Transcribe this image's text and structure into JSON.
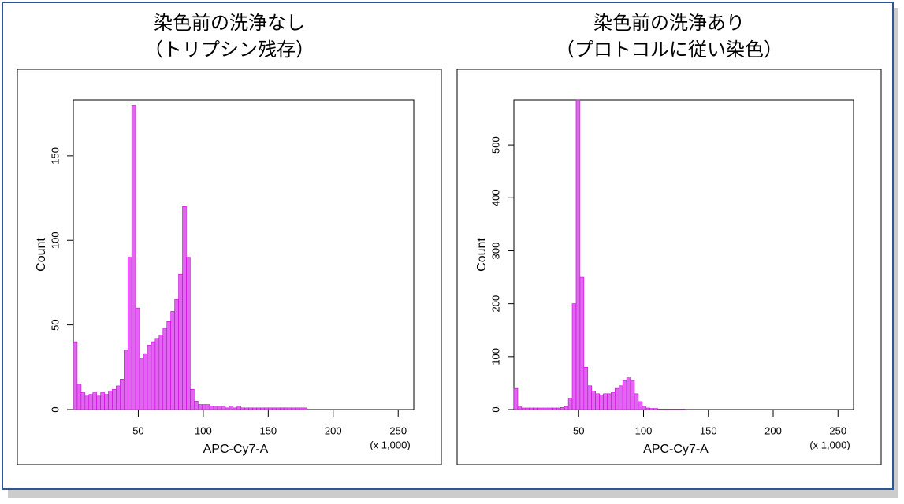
{
  "chart_data": [
    {
      "type": "histogram",
      "title": "染色前の洗浄なし",
      "subtitle": "（トリプシン残存）",
      "xlabel": "APC-Cy7-A",
      "ylabel": "Count",
      "x_unit_label": "(x 1,000)",
      "color": "#e066f0",
      "bins": [
        0,
        3,
        6,
        9,
        12,
        15,
        18,
        21,
        24,
        27,
        30,
        33,
        36,
        39,
        42,
        45,
        48,
        51,
        54,
        57,
        60,
        63,
        66,
        69,
        72,
        75,
        78,
        81,
        84,
        87,
        90,
        93,
        96,
        99,
        102,
        105,
        108,
        111,
        114,
        117,
        120,
        123,
        126,
        129,
        132,
        135,
        138,
        141,
        144,
        147,
        150,
        153,
        156,
        159,
        162,
        165,
        168,
        171,
        174,
        177,
        180
      ],
      "values": [
        40,
        15,
        10,
        8,
        9,
        10,
        8,
        10,
        9,
        11,
        12,
        14,
        18,
        35,
        90,
        180,
        60,
        30,
        33,
        38,
        40,
        42,
        44,
        48,
        52,
        58,
        65,
        80,
        120,
        90,
        12,
        5,
        3,
        3,
        3,
        2,
        2,
        2,
        2,
        1,
        2,
        1,
        2,
        1,
        1,
        1,
        1,
        1,
        1,
        1,
        1,
        1,
        1,
        1,
        1,
        1,
        1,
        1,
        1,
        1
      ],
      "xlim": [
        0,
        262
      ],
      "ylim": [
        0,
        183
      ],
      "xticks": [
        50,
        100,
        150,
        200,
        250
      ],
      "yticks": [
        0,
        50,
        100,
        150
      ]
    },
    {
      "type": "histogram",
      "title": "染色前の洗浄あり",
      "subtitle": "（プロトコルに従い染色）",
      "xlabel": "APC-Cy7-A",
      "ylabel": "Count",
      "x_unit_label": "(x 1,000)",
      "color": "#e066f0",
      "bins": [
        0,
        3,
        6,
        9,
        12,
        15,
        18,
        21,
        24,
        27,
        30,
        33,
        36,
        39,
        42,
        45,
        48,
        51,
        54,
        57,
        60,
        63,
        66,
        69,
        72,
        75,
        78,
        81,
        84,
        87,
        90,
        93,
        96,
        99,
        102,
        105,
        108,
        111,
        114,
        117,
        120,
        123,
        126,
        129,
        132,
        135,
        138,
        141,
        144,
        147,
        150,
        153,
        156,
        159,
        162,
        165,
        168,
        171,
        174,
        177,
        180
      ],
      "values": [
        40,
        5,
        3,
        3,
        3,
        3,
        3,
        3,
        3,
        3,
        3,
        3,
        4,
        6,
        20,
        200,
        585,
        250,
        80,
        45,
        35,
        30,
        28,
        30,
        30,
        32,
        40,
        45,
        55,
        60,
        55,
        30,
        15,
        5,
        3,
        2,
        2,
        1,
        1,
        1,
        1,
        1,
        1,
        1,
        0,
        0,
        0,
        0,
        0,
        0,
        0,
        0,
        0,
        0,
        0,
        0,
        0,
        0,
        0,
        0
      ],
      "xlim": [
        0,
        262
      ],
      "ylim": [
        0,
        585
      ],
      "xticks": [
        50,
        100,
        150,
        200,
        250
      ],
      "yticks": [
        0,
        100,
        200,
        300,
        400,
        500
      ]
    }
  ]
}
